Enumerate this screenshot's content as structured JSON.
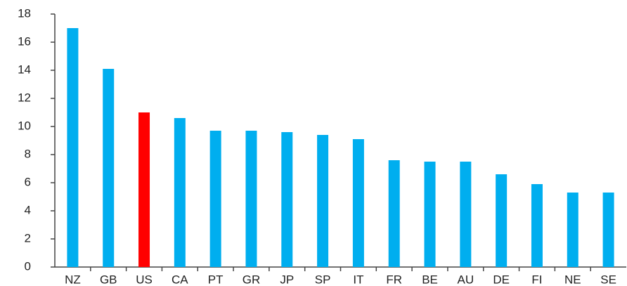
{
  "chart_data": {
    "type": "bar",
    "categories": [
      "NZ",
      "GB",
      "US",
      "CA",
      "PT",
      "GR",
      "JP",
      "SP",
      "IT",
      "FR",
      "BE",
      "AU",
      "DE",
      "FI",
      "NE",
      "SE"
    ],
    "values": [
      17,
      14.1,
      11,
      10.6,
      9.7,
      9.7,
      9.6,
      9.4,
      9.1,
      7.6,
      7.5,
      7.5,
      6.6,
      5.9,
      5.3,
      5.3
    ],
    "colors": [
      "#00aeef",
      "#00aeef",
      "#ff0000",
      "#00aeef",
      "#00aeef",
      "#00aeef",
      "#00aeef",
      "#00aeef",
      "#00aeef",
      "#00aeef",
      "#00aeef",
      "#00aeef",
      "#00aeef",
      "#00aeef",
      "#00aeef",
      "#00aeef"
    ],
    "ylim": [
      0,
      18
    ],
    "yticks": [
      0,
      2,
      4,
      6,
      8,
      10,
      12,
      14,
      16,
      18
    ],
    "grid": false
  }
}
